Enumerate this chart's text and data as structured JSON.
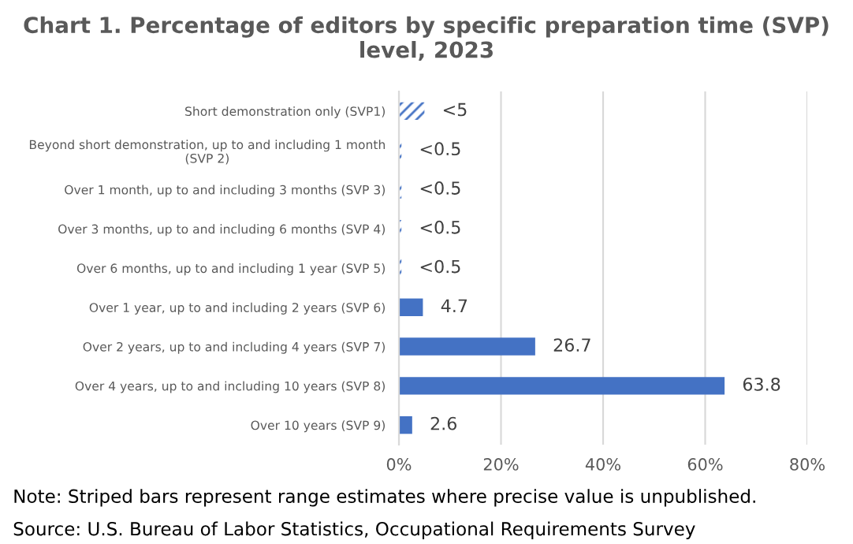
{
  "chart_data": {
    "type": "bar",
    "orientation": "horizontal",
    "stacked": true,
    "title": "Chart 1. Percentage of editors by specific preparation time (SVP) level, 2023",
    "categories": [
      "Short demonstration only (SVP1)",
      "Beyond short demonstration, up to and including 1 month\n(SVP 2)",
      "Over 1 month, up to and including 3 months (SVP 3)",
      "Over 3 months, up to and including 6 months (SVP 4)",
      "Over 6 months, up to and including 1 year (SVP 5)",
      "Over 1 year, up to and including 2 years (SVP 6)",
      "Over 2 years, up to and including 4 years (SVP 7)",
      "Over 4 years, up to and including 10 years (SVP 8)",
      "Over 10 years (SVP 9)"
    ],
    "series": [
      {
        "color": "#4472c4",
        "values": [
          null,
          null,
          null,
          null,
          null,
          4.7,
          26.7,
          63.8,
          2.6
        ],
        "value_labels": [
          null,
          null,
          null,
          null,
          null,
          "4.7",
          "26.7",
          "63.8",
          "2.6"
        ]
      },
      {
        "color": "#4472c4",
        "values": [
          5,
          0.5,
          0.5,
          0.5,
          0.5,
          null,
          null,
          null,
          null
        ],
        "value_labels": [
          "<5",
          "<0.5",
          "<0.5",
          "<0.5",
          "<0.5",
          null,
          null,
          null,
          null
        ]
      }
    ],
    "xlim": [
      0,
      80
    ],
    "xticks": [
      {
        "value": 0,
        "label": "0%"
      },
      {
        "value": 20,
        "label": "20%"
      },
      {
        "value": 40,
        "label": "40%"
      },
      {
        "value": 60,
        "label": "60%"
      },
      {
        "value": 80,
        "label": "80%"
      }
    ],
    "grid": "x",
    "legend": false,
    "annotations": [
      "Note: Striped bars represent range estimates where precise value is unpublished.",
      "Source: U.S. Bureau of Labor Statistics, Occupational Requirements Survey"
    ]
  }
}
